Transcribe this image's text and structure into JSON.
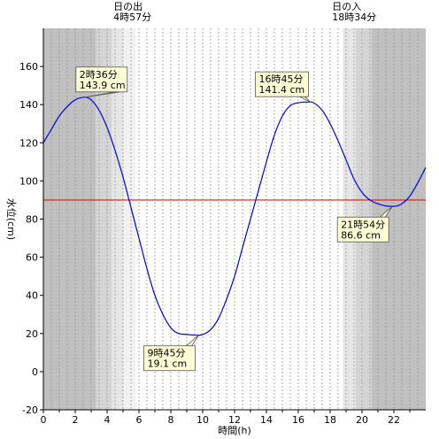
{
  "chart_data": {
    "type": "line",
    "xlabel": "時間(h)",
    "ylabel": "水位(cm)",
    "xlim": [
      0,
      24
    ],
    "ylim": [
      -20,
      180
    ],
    "x_ticks": [
      0,
      2,
      4,
      6,
      8,
      10,
      12,
      14,
      16,
      18,
      20,
      22
    ],
    "y_ticks": [
      -20,
      0,
      20,
      40,
      60,
      80,
      100,
      120,
      140,
      160
    ],
    "grid": "vertical dotted every 0.5 h",
    "reference_line": {
      "y": 90,
      "color": "#e00000"
    },
    "series": [
      {
        "color": "#0000dd",
        "x": [
          0,
          0.5,
          1,
          1.5,
          2,
          2.6,
          3,
          3.5,
          4,
          4.5,
          5,
          5.5,
          6,
          6.5,
          7,
          7.5,
          8,
          8.5,
          9,
          9.75,
          10.5,
          11,
          11.5,
          12,
          12.5,
          13,
          13.5,
          14,
          14.5,
          15,
          15.5,
          16,
          16.75,
          17.5,
          18,
          18.5,
          19,
          19.5,
          20,
          20.5,
          21,
          21.9,
          22.5,
          23,
          23.5,
          24
        ],
        "y": [
          120,
          127,
          134,
          139,
          142.5,
          143.9,
          142.5,
          137,
          128,
          116,
          102,
          86,
          70,
          54,
          40,
          30,
          23,
          20,
          19.5,
          19.1,
          22,
          28,
          38,
          50,
          65,
          80,
          95,
          110,
          124,
          134,
          139.5,
          141,
          141.4,
          137,
          130,
          121,
          111,
          101,
          94,
          90,
          88,
          86.6,
          88,
          92,
          99,
          107
        ]
      }
    ],
    "annotations": [
      {
        "time": "2時36分",
        "value": "143.9 cm",
        "x": 2.6,
        "y": 143.9
      },
      {
        "time": "9時45分",
        "value": "19.1 cm",
        "x": 9.75,
        "y": 19.1
      },
      {
        "time": "16時45分",
        "value": "141.4 cm",
        "x": 16.75,
        "y": 141.4
      },
      {
        "time": "21時54分",
        "value": "86.6 cm",
        "x": 21.9,
        "y": 86.6
      }
    ],
    "sunrise": {
      "label": "日の出",
      "time": "4時57分",
      "hour": 4.95
    },
    "sunset": {
      "label": "日の入",
      "time": "18時34分",
      "hour": 18.57
    },
    "night_shading": [
      {
        "from": 0,
        "to": 3.3,
        "shade": "#c0c0c0"
      },
      {
        "from": 3.3,
        "to": 4.3,
        "shade": "#d4d4d4"
      },
      {
        "from": 4.3,
        "to": 5.0,
        "shade": "#e6e6e6"
      },
      {
        "from": 5.0,
        "to": 5.8,
        "shade": "#f2f2f2"
      },
      {
        "from": 18.8,
        "to": 19.6,
        "shade": "#e6e6e6"
      },
      {
        "from": 19.6,
        "to": 20.6,
        "shade": "#d4d4d4"
      },
      {
        "from": 20.6,
        "to": 24,
        "shade": "#c0c0c0"
      }
    ]
  }
}
